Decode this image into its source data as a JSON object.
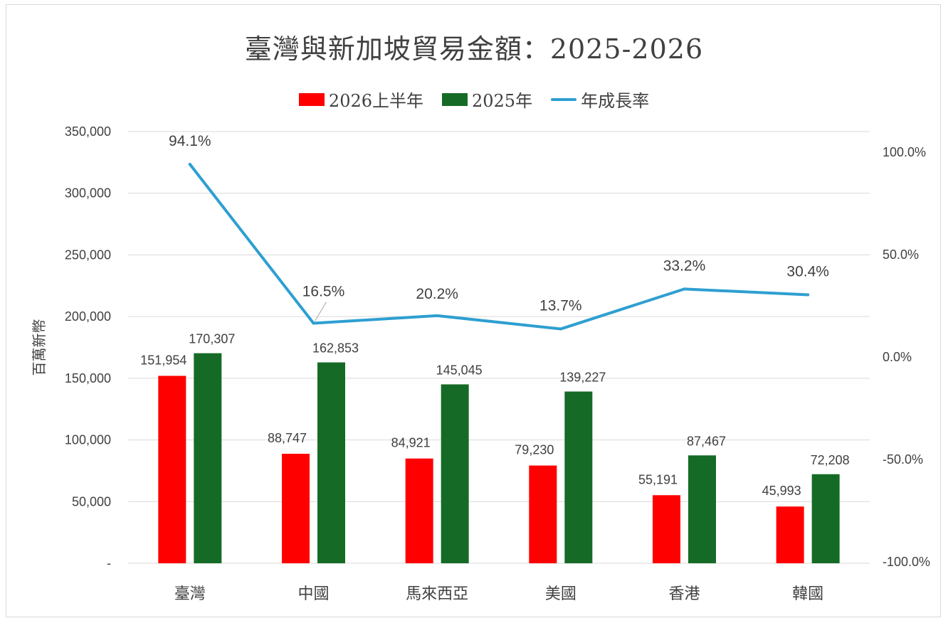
{
  "chart_data": {
    "type": "bar",
    "title": "臺灣與新加坡貿易金額：2025-2026",
    "ylabel": "百萬新幣",
    "categories": [
      "臺灣",
      "中國",
      "馬來西亞",
      "美國",
      "香港",
      "韓國"
    ],
    "series": [
      {
        "name": "2026上半年",
        "type": "bar",
        "color": "#ff0000",
        "axis": "left",
        "values": [
          151954,
          88747,
          84921,
          79230,
          55191,
          45993
        ]
      },
      {
        "name": "2025年",
        "type": "bar",
        "color": "#156b25",
        "axis": "left",
        "values": [
          170307,
          162853,
          145045,
          139227,
          87467,
          72208
        ]
      },
      {
        "name": "年成長率",
        "type": "line",
        "color": "#2e9fd1",
        "axis": "right",
        "values": [
          94.1,
          16.5,
          20.2,
          13.7,
          33.2,
          30.4
        ]
      }
    ],
    "bar_value_labels": [
      [
        "151,954",
        "88,747",
        "84,921",
        "79,230",
        "55,191",
        "45,993"
      ],
      [
        "170,307",
        "162,853",
        "145,045",
        "139,227",
        "87,467",
        "72,208"
      ]
    ],
    "line_value_labels": [
      "94.1%",
      "16.5%",
      "20.2%",
      "13.7%",
      "33.2%",
      "30.4%"
    ],
    "ylim": [
      0,
      350000
    ],
    "y_ticks": [
      0,
      50000,
      100000,
      150000,
      200000,
      250000,
      300000,
      350000
    ],
    "y_tick_labels": [
      "-",
      "50,000",
      "100,000",
      "150,000",
      "200,000",
      "250,000",
      "300,000",
      "350,000"
    ],
    "y2lim": [
      -100,
      100
    ],
    "y2_ticks": [
      -100,
      -50,
      0,
      50,
      100
    ],
    "y2_tick_labels": [
      "-100.0%",
      "-50.0%",
      "0.0%",
      "50.0%",
      "100.0%"
    ],
    "grid": true,
    "legend_position": "top"
  }
}
